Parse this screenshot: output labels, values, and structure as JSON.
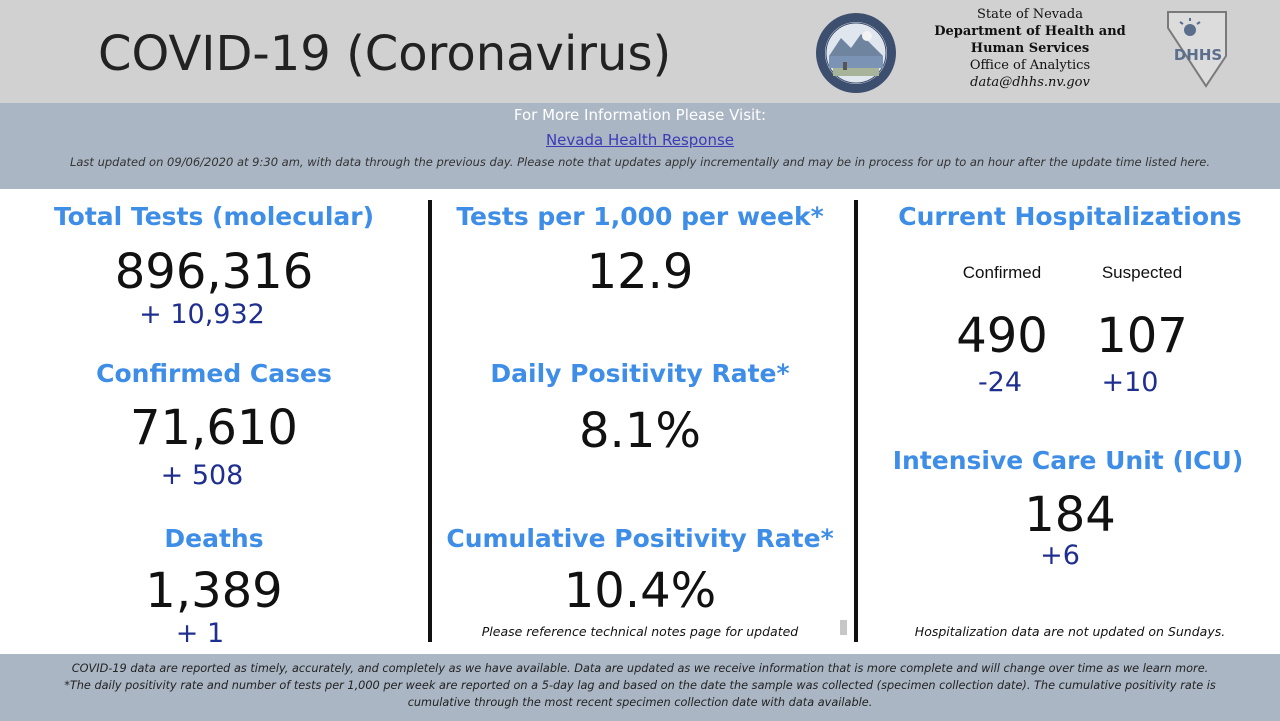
{
  "header": {
    "title": "COVID-19 (Coronavirus)",
    "dept_line1": "State of Nevada",
    "dept_line2": "Department of Health and",
    "dept_line3": "Human Services",
    "dept_line4": "Office of Analytics",
    "dept_email": "data@dhhs.nv.gov",
    "seal_icon": "nevada-state-seal",
    "logo_icon": "dhhs-logo"
  },
  "info": {
    "label": "For More Information Please Visit:",
    "link": "Nevada Health Response",
    "updated": "Last updated on 09/06/2020 at 9:30 am, with data through the previous day.  Please note that updates apply incrementally and may be in process for up to an hour after the update time listed here."
  },
  "col1": {
    "tests_title": "Total Tests (molecular)",
    "tests_value": "896,316",
    "tests_delta": "+ 10,932",
    "cases_title": "Confirmed Cases",
    "cases_value": "71,610",
    "cases_delta": "+ 508",
    "deaths_title": "Deaths",
    "deaths_value": "1,389",
    "deaths_delta": "+ 1"
  },
  "col2": {
    "tpw_title": "Tests per 1,000 per week*",
    "tpw_value": "12.9",
    "dpr_title": "Daily Positivity Rate*",
    "dpr_value": "8.1%",
    "cpr_title": "Cumulative Positivity Rate*",
    "cpr_value": "10.4%",
    "note": "Please reference technical notes page for updated"
  },
  "col3": {
    "hosp_title": "Current Hospitalizations",
    "confirmed_label": "Confirmed",
    "suspected_label": "Suspected",
    "confirmed_value": "490",
    "suspected_value": "107",
    "confirmed_delta": "-24",
    "suspected_delta": "+10",
    "icu_title": "Intensive Care Unit (ICU)",
    "icu_value": "184",
    "icu_delta": "+6",
    "note": "Hospitalization data are not updated on Sundays."
  },
  "footer": {
    "line1": "COVID-19 data are reported as timely, accurately, and completely as we have available.  Data are updated as we receive information that is more complete and will change over time as we learn more.",
    "line2": "*The daily positivity rate and number of tests per 1,000 per week are reported on a 5-day lag and based on the date the sample was collected (specimen collection date).  The cumulative positivity rate is",
    "line3": "cumulative through the most recent specimen collection date with data available."
  },
  "colors": {
    "title_blue": "#3e8de6",
    "delta_blue": "#1f2f8f",
    "band_gray_blue": "#aab6c4",
    "header_gray": "#d1d1d1"
  }
}
